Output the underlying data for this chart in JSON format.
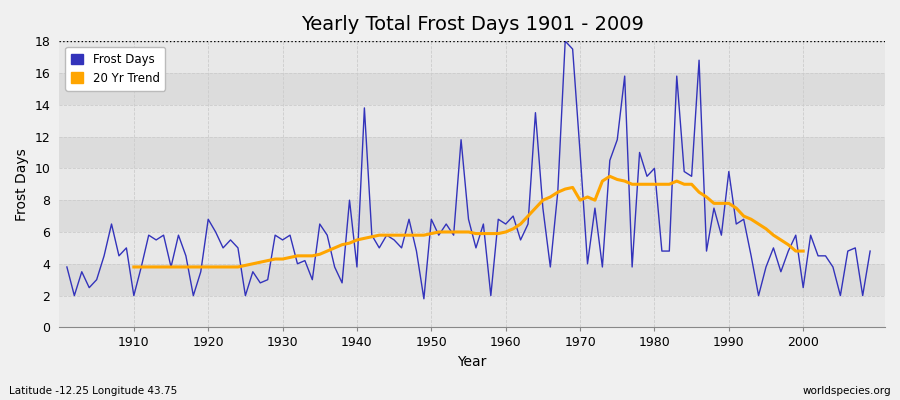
{
  "title": "Yearly Total Frost Days 1901 - 2009",
  "ylabel": "Frost Days",
  "xlabel": "Year",
  "subtitle_left": "Latitude -12.25 Longitude 43.75",
  "subtitle_right": "worldspecies.org",
  "years": [
    1901,
    1902,
    1903,
    1904,
    1905,
    1906,
    1907,
    1908,
    1909,
    1910,
    1911,
    1912,
    1913,
    1914,
    1915,
    1916,
    1917,
    1918,
    1919,
    1920,
    1921,
    1922,
    1923,
    1924,
    1925,
    1926,
    1927,
    1928,
    1929,
    1930,
    1931,
    1932,
    1933,
    1934,
    1935,
    1936,
    1937,
    1938,
    1939,
    1940,
    1941,
    1942,
    1943,
    1944,
    1945,
    1946,
    1947,
    1948,
    1949,
    1950,
    1951,
    1952,
    1953,
    1954,
    1955,
    1956,
    1957,
    1958,
    1959,
    1960,
    1961,
    1962,
    1963,
    1964,
    1965,
    1966,
    1967,
    1968,
    1969,
    1970,
    1971,
    1972,
    1973,
    1974,
    1975,
    1976,
    1977,
    1978,
    1979,
    1980,
    1981,
    1982,
    1983,
    1984,
    1985,
    1986,
    1987,
    1988,
    1989,
    1990,
    1991,
    1992,
    1993,
    1994,
    1995,
    1996,
    1997,
    1998,
    1999,
    2000,
    2001,
    2002,
    2003,
    2004,
    2005,
    2006,
    2007,
    2008,
    2009
  ],
  "frost_days": [
    3.8,
    2.0,
    3.5,
    2.5,
    3.0,
    4.5,
    6.5,
    4.5,
    5.0,
    2.0,
    3.8,
    5.8,
    5.5,
    5.8,
    3.8,
    5.8,
    4.5,
    2.0,
    3.5,
    6.8,
    6.0,
    5.0,
    5.5,
    5.0,
    2.0,
    3.5,
    2.8,
    3.0,
    5.8,
    5.5,
    5.8,
    4.0,
    4.2,
    3.0,
    6.5,
    5.8,
    3.8,
    2.8,
    8.0,
    3.8,
    13.8,
    5.8,
    5.0,
    5.8,
    5.5,
    5.0,
    6.8,
    4.8,
    1.8,
    6.8,
    5.8,
    6.5,
    5.8,
    11.8,
    6.8,
    5.0,
    6.5,
    2.0,
    6.8,
    6.5,
    7.0,
    5.5,
    6.5,
    13.5,
    7.5,
    3.8,
    8.5,
    18.0,
    17.5,
    11.0,
    4.0,
    7.5,
    3.8,
    10.5,
    11.8,
    15.8,
    3.8,
    11.0,
    9.5,
    10.0,
    4.8,
    4.8,
    15.8,
    9.8,
    9.5,
    16.8,
    4.8,
    7.5,
    5.8,
    9.8,
    6.5,
    6.8,
    4.5,
    2.0,
    3.8,
    5.0,
    3.5,
    4.8,
    5.8,
    2.5,
    5.8,
    4.5,
    4.5,
    3.8,
    2.0,
    4.8,
    5.0,
    2.0,
    4.8
  ],
  "trend_years": [
    1910,
    1911,
    1912,
    1913,
    1914,
    1915,
    1916,
    1917,
    1918,
    1919,
    1920,
    1921,
    1922,
    1923,
    1924,
    1925,
    1926,
    1927,
    1928,
    1929,
    1930,
    1931,
    1932,
    1933,
    1934,
    1935,
    1936,
    1937,
    1938,
    1939,
    1940,
    1941,
    1942,
    1943,
    1944,
    1945,
    1946,
    1947,
    1948,
    1949,
    1950,
    1951,
    1952,
    1953,
    1954,
    1955,
    1956,
    1957,
    1958,
    1959,
    1960,
    1961,
    1962,
    1963,
    1964,
    1965,
    1966,
    1967,
    1968,
    1969,
    1970,
    1971,
    1972,
    1973,
    1974,
    1975,
    1976,
    1977,
    1978,
    1979,
    1980,
    1981,
    1982,
    1983,
    1984,
    1985,
    1986,
    1987,
    1988,
    1989,
    1990,
    1991,
    1992,
    1993,
    1994,
    1995,
    1996,
    1997,
    1998,
    1999,
    2000
  ],
  "trend_values": [
    3.8,
    3.8,
    3.8,
    3.8,
    3.8,
    3.8,
    3.8,
    3.8,
    3.8,
    3.8,
    3.8,
    3.8,
    3.8,
    3.8,
    3.8,
    3.9,
    4.0,
    4.1,
    4.2,
    4.3,
    4.3,
    4.4,
    4.5,
    4.5,
    4.5,
    4.6,
    4.8,
    5.0,
    5.2,
    5.3,
    5.5,
    5.6,
    5.7,
    5.8,
    5.8,
    5.8,
    5.8,
    5.8,
    5.8,
    5.8,
    5.9,
    6.0,
    6.0,
    6.0,
    6.0,
    6.0,
    5.9,
    5.9,
    5.9,
    5.9,
    6.0,
    6.2,
    6.5,
    7.0,
    7.5,
    8.0,
    8.2,
    8.5,
    8.7,
    8.8,
    8.0,
    8.2,
    8.0,
    9.2,
    9.5,
    9.3,
    9.2,
    9.0,
    9.0,
    9.0,
    9.0,
    9.0,
    9.0,
    9.2,
    9.0,
    9.0,
    8.5,
    8.2,
    7.8,
    7.8,
    7.8,
    7.5,
    7.0,
    6.8,
    6.5,
    6.2,
    5.8,
    5.5,
    5.2,
    4.8,
    4.8
  ],
  "frost_color": "#3333bb",
  "trend_color": "#ffa500",
  "bg_color": "#f0f0f0",
  "plot_bg_color": "#ebebeb",
  "band_color_light": "#e8e8e8",
  "band_color_dark": "#dcdcdc",
  "ylim": [
    0,
    18
  ],
  "yticks": [
    0,
    2,
    4,
    6,
    8,
    10,
    12,
    14,
    16,
    18
  ],
  "xticks": [
    1910,
    1920,
    1930,
    1940,
    1950,
    1960,
    1970,
    1980,
    1990,
    2000
  ],
  "dotted_line_y": 18,
  "title_fontsize": 14,
  "axis_label_fontsize": 10,
  "tick_fontsize": 9
}
